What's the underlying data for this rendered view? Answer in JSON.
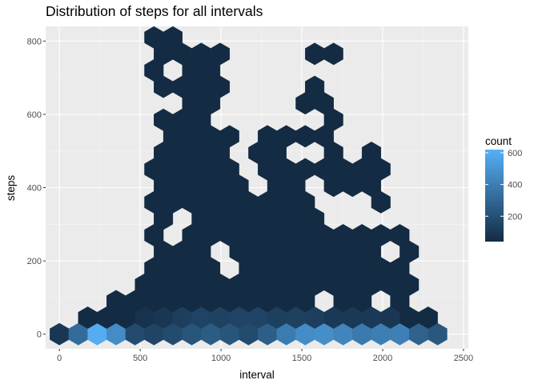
{
  "chart_data": {
    "type": "heatmap",
    "subtype": "hexbin",
    "title": "Distribution of steps for all intervals",
    "xlabel": "interval",
    "ylabel": "steps",
    "xlim": [
      -85,
      2530
    ],
    "ylim": [
      -40,
      840
    ],
    "x_ticks": [
      0,
      500,
      1000,
      1500,
      2000,
      2500
    ],
    "y_ticks": [
      0,
      200,
      400,
      600,
      800
    ],
    "grid": true,
    "background": "#ebebeb",
    "legend": {
      "title": "count",
      "position": "right",
      "ticks": [
        200,
        400,
        600
      ],
      "min": 40,
      "max": 620,
      "color_low": "#132b43",
      "color_high": "#56b1f7"
    },
    "bins": {
      "x_width": 117,
      "y_spacing": 45,
      "x_range": [
        0,
        2355
      ],
      "y_range": [
        0,
        810
      ],
      "baseline_counts": [
        90,
        280,
        320,
        480,
        560,
        600,
        560,
        460,
        330,
        230,
        180,
        160,
        150,
        160,
        180,
        230,
        250,
        220,
        230,
        250,
        240,
        220,
        210,
        190,
        180,
        190,
        260,
        300,
        360,
        390,
        420,
        460,
        470,
        470,
        460,
        450,
        430,
        400,
        380,
        360,
        380,
        400,
        430,
        410,
        330,
        280,
        240,
        230
      ],
      "low_row_counts": [
        60,
        20,
        20,
        15,
        15,
        25,
        35,
        55,
        70,
        75,
        90,
        110,
        125,
        130,
        145,
        150,
        140,
        150,
        130,
        150,
        145,
        130,
        125,
        135,
        145,
        125,
        110,
        100,
        100,
        105,
        100,
        95,
        90,
        60,
        30,
        30,
        25,
        15
      ],
      "upper_density_note": "sparse single-count bins above 100 steps between intervals 400 and 2400"
    }
  }
}
